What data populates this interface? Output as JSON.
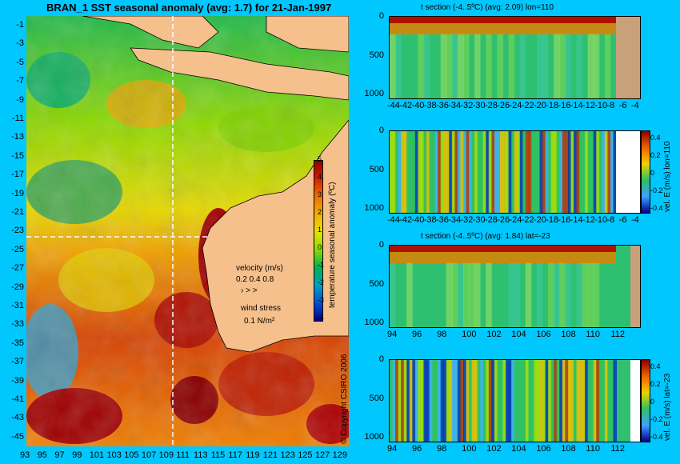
{
  "main_title": "BRAN_1  SST seasonal anomaly  (avg: 1.7)  for 21-Jan-1997",
  "map": {
    "lat_ticks": [
      "-1",
      "-3",
      "-5",
      "-7",
      "-9",
      "-11",
      "-13",
      "-15",
      "-17",
      "-19",
      "-21",
      "-23",
      "-25",
      "-27",
      "-29",
      "-31",
      "-33",
      "-35",
      "-37",
      "-39",
      "-41",
      "-43",
      "-45"
    ],
    "lon_ticks": [
      "93",
      "95",
      "97",
      "99",
      "101",
      "103",
      "105",
      "107",
      "109",
      "111",
      "113",
      "115",
      "117",
      "119",
      "121",
      "123",
      "125",
      "127",
      "129"
    ],
    "lon_range": [
      93,
      130
    ],
    "lat_range": [
      -45,
      0
    ],
    "section_lon": 110,
    "section_lat": -23,
    "colorbar_ticks": [
      "5",
      "4",
      "3",
      "2",
      "1",
      "0",
      "-1",
      "-2",
      "-3",
      "-4"
    ],
    "colorbar_label": "temperature seasonal anomaly (ºC)",
    "velocity_label": "velocity (m/s)",
    "velocity_scale": "0.2 0.4 0.8",
    "wind_label": "wind stress",
    "wind_value": "0.1 N/m²",
    "copyright": "© Copyright CSIRO 2006",
    "colors": {
      "ocean_warm": "#8b0000",
      "land": "#f5c08c",
      "background": "#00c8ff"
    }
  },
  "panels": [
    {
      "title": "t section (-4..5ºC)  (avg: 2.09) lon=110",
      "x_ticks": [
        "-44",
        "-42",
        "-40",
        "-38",
        "-36",
        "-34",
        "-32",
        "-30",
        "-28",
        "-26",
        "-24",
        "-22",
        "-20",
        "-18",
        "-16",
        "-14",
        "-12",
        "-10",
        "-8",
        "-6",
        "-4"
      ],
      "y_ticks": [
        "0",
        "500",
        "1000"
      ],
      "side_label": "",
      "colorbar_ticks": []
    },
    {
      "title": "",
      "x_ticks": [
        "-44",
        "-42",
        "-40",
        "-38",
        "-36",
        "-34",
        "-32",
        "-30",
        "-28",
        "-26",
        "-24",
        "-22",
        "-20",
        "-18",
        "-16",
        "-14",
        "-12",
        "-10",
        "-8",
        "-6",
        "-4"
      ],
      "y_ticks": [
        "0",
        "500",
        "1000"
      ],
      "side_label": "vel. E (m/s) lon=110",
      "colorbar_ticks": [
        "0.4",
        "0.2",
        "0",
        "-0.2",
        "-0.4"
      ]
    },
    {
      "title": "t section (-4..5ºC)  (avg: 1.84) lat=-23",
      "x_ticks": [
        "94",
        "96",
        "98",
        "100",
        "102",
        "104",
        "106",
        "108",
        "110",
        "112"
      ],
      "y_ticks": [
        "0",
        "500",
        "1000"
      ],
      "side_label": "",
      "colorbar_ticks": []
    },
    {
      "title": "",
      "x_ticks": [
        "94",
        "96",
        "98",
        "100",
        "102",
        "104",
        "106",
        "108",
        "110",
        "112"
      ],
      "y_ticks": [
        "0",
        "500",
        "1000"
      ],
      "side_label": "vel. E (m/s) lat=-23",
      "colorbar_ticks": [
        "0.4",
        "0.2",
        "0",
        "-0.2",
        "-0.4"
      ]
    }
  ],
  "chart_data": [
    {
      "type": "heatmap",
      "title": "BRAN_1  SST seasonal anomaly  (avg: 1.7)  for 21-Jan-1997",
      "x_range": [
        93,
        130
      ],
      "y_range": [
        -45,
        0
      ],
      "color_range": [
        -4,
        5
      ],
      "colorbar_label": "temperature seasonal anomaly (ºC)"
    },
    {
      "type": "heatmap",
      "title": "t section (-4..5ºC)  (avg: 2.09) lon=110",
      "x_range": [
        -45,
        -3
      ],
      "y_range": [
        1050,
        0
      ]
    },
    {
      "type": "heatmap",
      "title": "",
      "x_range": [
        -45,
        -3
      ],
      "y_range": [
        1050,
        0
      ],
      "color_range": [
        -0.5,
        0.5
      ],
      "colorbar_label": "vel. E (m/s) lon=110"
    },
    {
      "type": "heatmap",
      "title": "t section (-4..5ºC)  (avg: 1.84) lat=-23",
      "x_range": [
        93,
        114
      ],
      "y_range": [
        1050,
        0
      ]
    },
    {
      "type": "heatmap",
      "title": "",
      "x_range": [
        93,
        114
      ],
      "y_range": [
        1050,
        0
      ],
      "color_range": [
        -0.5,
        0.5
      ],
      "colorbar_label": "vel. E (m/s) lat=-23"
    }
  ]
}
